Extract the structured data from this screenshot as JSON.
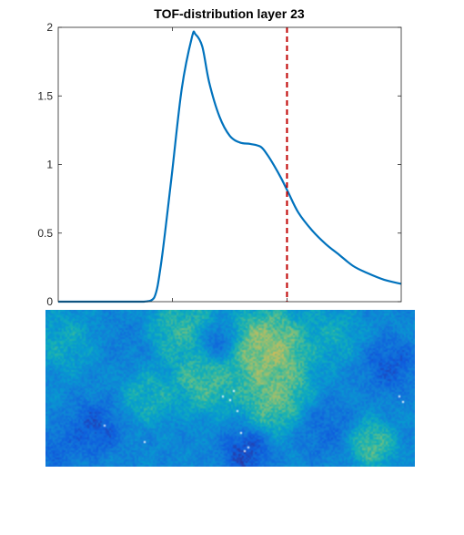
{
  "chart_data": [
    {
      "type": "line",
      "title": "TOF-distribution layer 23",
      "xlabel": "",
      "ylabel": "",
      "ylim": [
        0,
        2
      ],
      "yticks": [
        0,
        0.5,
        1,
        1.5,
        2
      ],
      "ytick_labels": [
        "0",
        "0.5",
        "1",
        "1.5",
        "2"
      ],
      "xlim": [
        0,
        1
      ],
      "xticks": [
        0.333,
        0.667
      ],
      "grid": false,
      "series": [
        {
          "color": "#0072BD",
          "x": [
            0.0,
            0.2,
            0.25,
            0.28,
            0.3,
            0.33,
            0.36,
            0.39,
            0.4,
            0.42,
            0.44,
            0.47,
            0.5,
            0.53,
            0.56,
            0.59,
            0.61,
            0.63,
            0.65,
            0.67,
            0.7,
            0.74,
            0.78,
            0.82,
            0.86,
            0.9,
            0.95,
            1.0
          ],
          "values": [
            0.0,
            0.0,
            0.0,
            0.03,
            0.28,
            0.9,
            1.55,
            1.93,
            1.95,
            1.86,
            1.6,
            1.35,
            1.21,
            1.16,
            1.15,
            1.13,
            1.07,
            0.99,
            0.9,
            0.8,
            0.65,
            0.52,
            0.42,
            0.34,
            0.26,
            0.21,
            0.16,
            0.13
          ]
        }
      ],
      "marker_line": {
        "x": 0.667,
        "color": "#C00000",
        "style": "dashed"
      }
    },
    {
      "type": "heatmap",
      "colormap": "parula",
      "blobs": [
        {
          "cx": 0.6,
          "cy": 0.25,
          "r": 0.14,
          "v": 0.85
        },
        {
          "cx": 0.62,
          "cy": 0.55,
          "r": 0.12,
          "v": 0.75
        },
        {
          "cx": 0.37,
          "cy": 0.12,
          "r": 0.12,
          "v": 0.65
        },
        {
          "cx": 0.43,
          "cy": 0.45,
          "r": 0.11,
          "v": 0.7
        },
        {
          "cx": 0.28,
          "cy": 0.55,
          "r": 0.09,
          "v": 0.6
        },
        {
          "cx": 0.88,
          "cy": 0.85,
          "r": 0.08,
          "v": 0.7
        },
        {
          "cx": 0.77,
          "cy": 0.15,
          "r": 0.1,
          "v": 0.55
        },
        {
          "cx": 0.05,
          "cy": 0.2,
          "r": 0.1,
          "v": 0.55
        },
        {
          "cx": 0.13,
          "cy": 0.75,
          "r": 0.09,
          "v": 0.1
        },
        {
          "cx": 0.54,
          "cy": 0.9,
          "r": 0.08,
          "v": 0.05
        },
        {
          "cx": 0.93,
          "cy": 0.35,
          "r": 0.09,
          "v": 0.12
        },
        {
          "cx": 0.46,
          "cy": 0.2,
          "r": 0.07,
          "v": 0.12
        },
        {
          "cx": 0.75,
          "cy": 0.75,
          "r": 0.1,
          "v": 0.2
        },
        {
          "cx": 0.03,
          "cy": 0.88,
          "r": 0.07,
          "v": 0.18
        },
        {
          "cx": 0.22,
          "cy": 0.2,
          "r": 0.08,
          "v": 0.3
        }
      ],
      "base_level": 0.35,
      "white_pixels": [
        [
          0.48,
          0.55
        ],
        [
          0.5,
          0.58
        ],
        [
          0.51,
          0.52
        ],
        [
          0.52,
          0.64
        ],
        [
          0.16,
          0.74
        ],
        [
          0.53,
          0.78
        ],
        [
          0.54,
          0.9
        ],
        [
          0.55,
          0.88
        ],
        [
          0.96,
          0.55
        ],
        [
          0.97,
          0.59
        ],
        [
          0.27,
          0.84
        ]
      ]
    }
  ]
}
